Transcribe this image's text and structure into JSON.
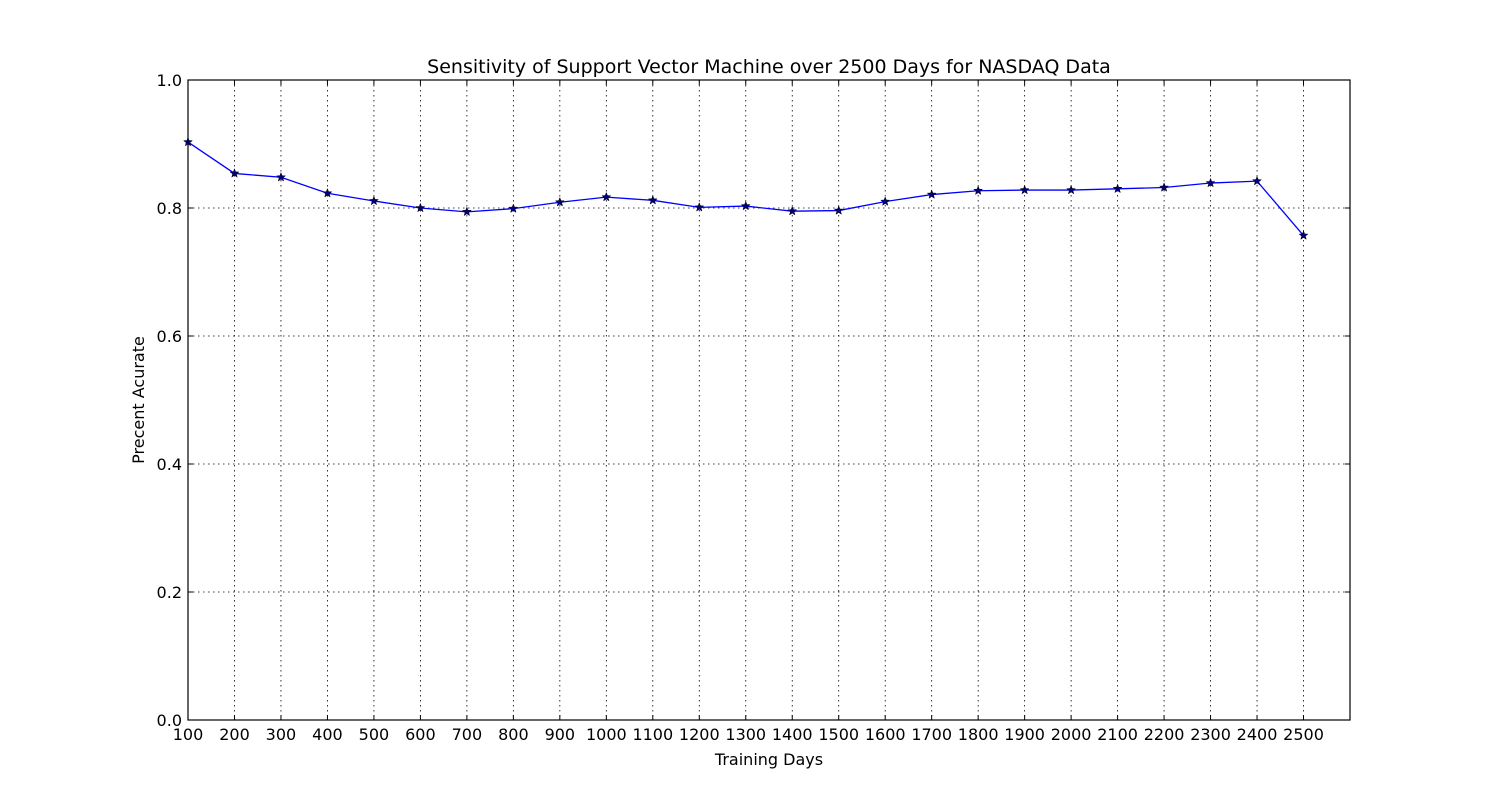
{
  "chart_data": {
    "type": "line",
    "title": "Sensitivity of Support Vector Machine over 2500 Days for NASDAQ Data",
    "xlabel": "Training Days",
    "ylabel": "Precent Acurate",
    "xlim": [
      100,
      2600
    ],
    "ylim": [
      0.0,
      1.0
    ],
    "xticks": [
      100,
      200,
      300,
      400,
      500,
      600,
      700,
      800,
      900,
      1000,
      1100,
      1200,
      1300,
      1400,
      1500,
      1600,
      1700,
      1800,
      1900,
      2000,
      2100,
      2200,
      2300,
      2400,
      2500
    ],
    "yticks": [
      0.0,
      0.2,
      0.4,
      0.6,
      0.8,
      1.0
    ],
    "ytick_labels": [
      "0.0",
      "0.2",
      "0.4",
      "0.6",
      "0.8",
      "1.0"
    ],
    "grid": true,
    "series": [
      {
        "color": "#0000ff",
        "marker": "star",
        "x": [
          100,
          200,
          300,
          400,
          500,
          600,
          700,
          800,
          900,
          1000,
          1100,
          1200,
          1300,
          1400,
          1500,
          1600,
          1700,
          1800,
          1900,
          2000,
          2100,
          2200,
          2300,
          2400,
          2500
        ],
        "y": [
          0.903,
          0.854,
          0.848,
          0.823,
          0.811,
          0.8,
          0.794,
          0.799,
          0.809,
          0.817,
          0.812,
          0.801,
          0.803,
          0.795,
          0.796,
          0.81,
          0.821,
          0.827,
          0.828,
          0.828,
          0.83,
          0.832,
          0.839,
          0.842,
          0.757
        ]
      }
    ]
  }
}
